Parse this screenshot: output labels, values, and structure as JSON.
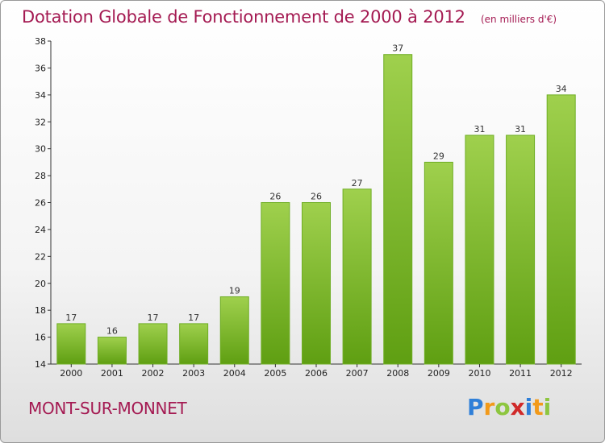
{
  "header": {
    "title": "Dotation Globale de Fonctionnement de 2000 à 2012",
    "unit": "(en milliers d'€)"
  },
  "place": "MONT-SUR-MONNET",
  "logo": {
    "letters": [
      {
        "ch": "P",
        "color": "#2f7fd8"
      },
      {
        "ch": "r",
        "color": "#f29a1a"
      },
      {
        "ch": "o",
        "color": "#8dc63f"
      },
      {
        "ch": "x",
        "color": "#d02a2a"
      },
      {
        "ch": "i",
        "color": "#2f7fd8"
      },
      {
        "ch": "t",
        "color": "#f29a1a"
      },
      {
        "ch": "i",
        "color": "#8dc63f"
      }
    ]
  },
  "colors": {
    "bar_top": "#9fd04d",
    "bar_bottom": "#5f9f12",
    "accent": "#a41a52"
  },
  "chart_data": {
    "type": "bar",
    "categories": [
      "2000",
      "2001",
      "2002",
      "2003",
      "2004",
      "2005",
      "2006",
      "2007",
      "2008",
      "2009",
      "2010",
      "2011",
      "2012"
    ],
    "values": [
      17,
      16,
      17,
      17,
      19,
      26,
      26,
      27,
      37,
      29,
      31,
      31,
      34
    ],
    "title": "Dotation Globale de Fonctionnement de 2000 à 2012",
    "subtitle": "(en milliers d'€)",
    "ylim": [
      14,
      38
    ],
    "yticks": [
      14,
      16,
      18,
      20,
      22,
      24,
      26,
      28,
      30,
      32,
      34,
      36,
      38
    ],
    "grid": false,
    "legend": "none"
  }
}
